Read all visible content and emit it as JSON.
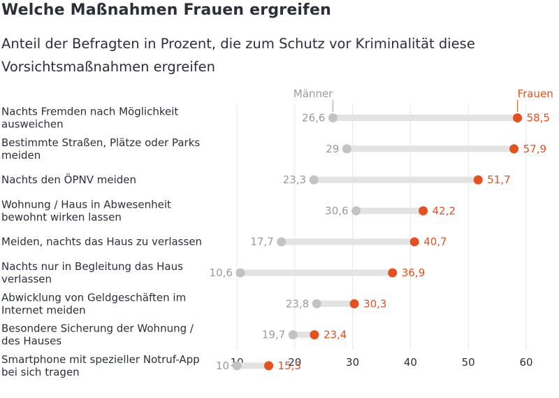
{
  "title": "Welche Maßnahmen Frauen ergreifen",
  "subtitle": "Anteil der Befragten in Prozent, die zum Schutz vor Kriminalität diese Vorsichtsmaßnahmen ergreifen",
  "colors": {
    "maenner": "#c3c3c3",
    "frauen": "#e5501f",
    "bar": "#e3e3e3",
    "grid": "#e6e6e6",
    "text": "#2b2f3a",
    "muted": "#9a9a9a"
  },
  "chart_data": {
    "type": "dumbbell",
    "title": "Welche Maßnahmen Frauen ergreifen",
    "subtitle": "Anteil der Befragten in Prozent, die zum Schutz vor Kriminalität diese Vorsichtsmaßnahmen ergreifen",
    "xlim": [
      8,
      62
    ],
    "xticks": [
      10,
      20,
      30,
      40,
      50,
      60
    ],
    "grid": true,
    "series": [
      {
        "name": "Männer",
        "color": "#c3c3c3"
      },
      {
        "name": "Frauen",
        "color": "#e5501f"
      }
    ],
    "rows": [
      {
        "lines": [
          "Nachts Fremden nach Möglichkeit",
          "ausweichen"
        ],
        "maenner": 26.6,
        "frauen": 58.5,
        "maenner_label": "26,6",
        "frauen_label": "58,5"
      },
      {
        "lines": [
          "Bestimmte Straßen, Plätze oder Parks",
          "meiden"
        ],
        "maenner": 29,
        "frauen": 57.9,
        "maenner_label": "29",
        "frauen_label": "57,9"
      },
      {
        "lines": [
          "Nachts den ÖPNV meiden"
        ],
        "maenner": 23.3,
        "frauen": 51.7,
        "maenner_label": "23,3",
        "frauen_label": "51,7"
      },
      {
        "lines": [
          "Wohnung / Haus in Abwesenheit",
          "bewohnt wirken lassen"
        ],
        "maenner": 30.6,
        "frauen": 42.2,
        "maenner_label": "30,6",
        "frauen_label": "42,2"
      },
      {
        "lines": [
          "Meiden, nachts das Haus zu verlassen"
        ],
        "maenner": 17.7,
        "frauen": 40.7,
        "maenner_label": "17,7",
        "frauen_label": "40,7"
      },
      {
        "lines": [
          "Nachts nur in Begleitung das Haus",
          "verlassen"
        ],
        "maenner": 10.6,
        "frauen": 36.9,
        "maenner_label": "10,6",
        "frauen_label": "36,9"
      },
      {
        "lines": [
          "Abwicklung von Geldgeschäften im",
          "Internet meiden"
        ],
        "maenner": 23.8,
        "frauen": 30.3,
        "maenner_label": "23,8",
        "frauen_label": "30,3"
      },
      {
        "lines": [
          "Besondere Sicherung der Wohnung /",
          "des Hauses"
        ],
        "maenner": 19.7,
        "frauen": 23.4,
        "maenner_label": "19,7",
        "frauen_label": "23,4"
      },
      {
        "lines": [
          "Smartphone mit spezieller Notruf-App",
          "bei sich tragen"
        ],
        "maenner": 10,
        "frauen": 15.5,
        "maenner_label": "10",
        "frauen_label": "15,5"
      }
    ]
  }
}
